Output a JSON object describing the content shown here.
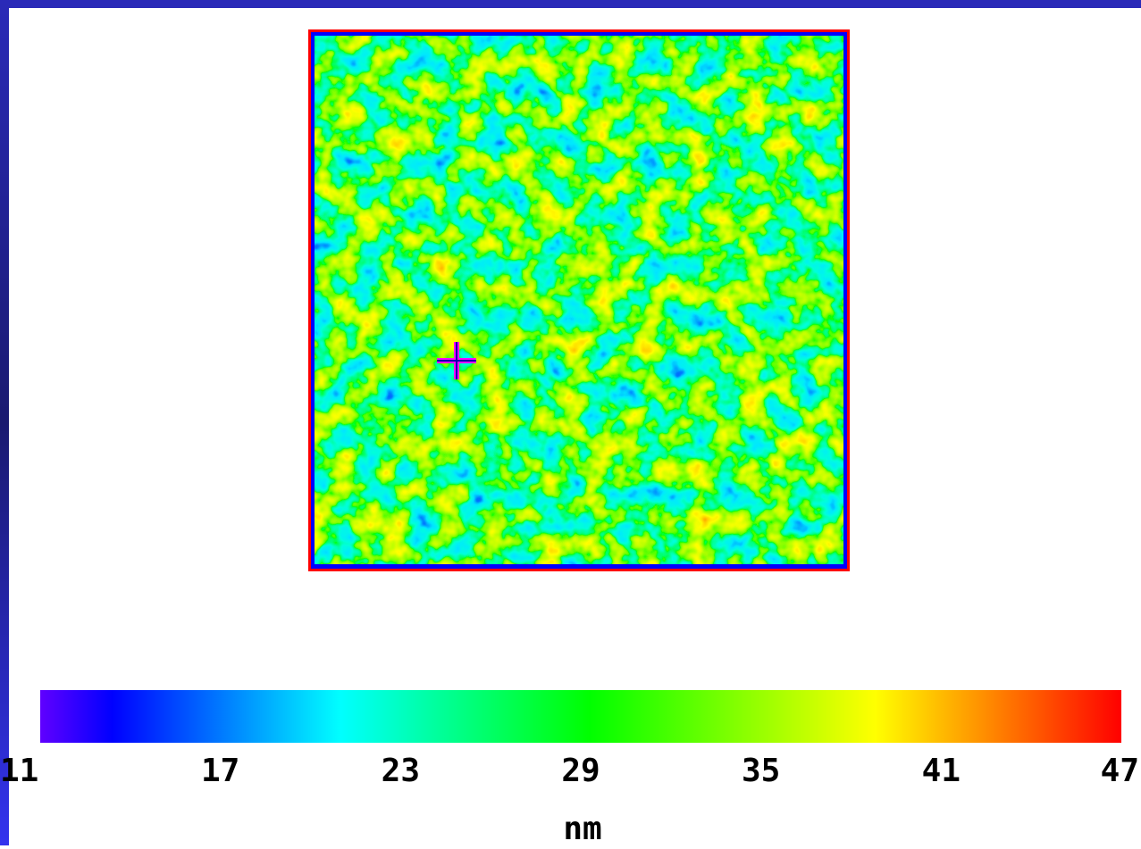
{
  "chart_data": {
    "type": "colorbar",
    "xlabel": "nm",
    "xlim": [
      11,
      47
    ],
    "xticks": [
      11,
      17,
      23,
      29,
      35,
      41,
      47
    ],
    "colorscale": [
      {
        "value": 11,
        "color": "#6000ff"
      },
      {
        "value": 13.4,
        "color": "#0000ff"
      },
      {
        "value": 21,
        "color": "#00ffff"
      },
      {
        "value": 29.3,
        "color": "#00ff00"
      },
      {
        "value": 38.8,
        "color": "#ffff00"
      },
      {
        "value": 47,
        "color": "#ff0000"
      }
    ]
  }
}
